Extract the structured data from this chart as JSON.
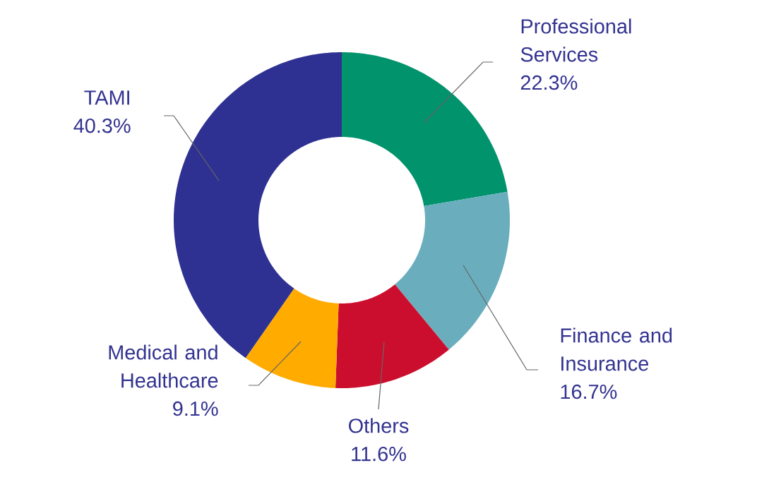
{
  "chart_data": {
    "type": "donut",
    "categories": [
      "Professional Services",
      "Finance and Insurance",
      "Others",
      "Medical and Healthcare",
      "TAMI"
    ],
    "values": [
      22.3,
      16.7,
      11.6,
      9.1,
      40.3
    ],
    "colors": [
      "#00936c",
      "#6aaebe",
      "#cc0e2e",
      "#ffab00",
      "#2e3192"
    ],
    "value_labels": [
      "22.3%",
      "16.7%",
      "11.6%",
      "9.1%",
      "40.3%"
    ]
  }
}
